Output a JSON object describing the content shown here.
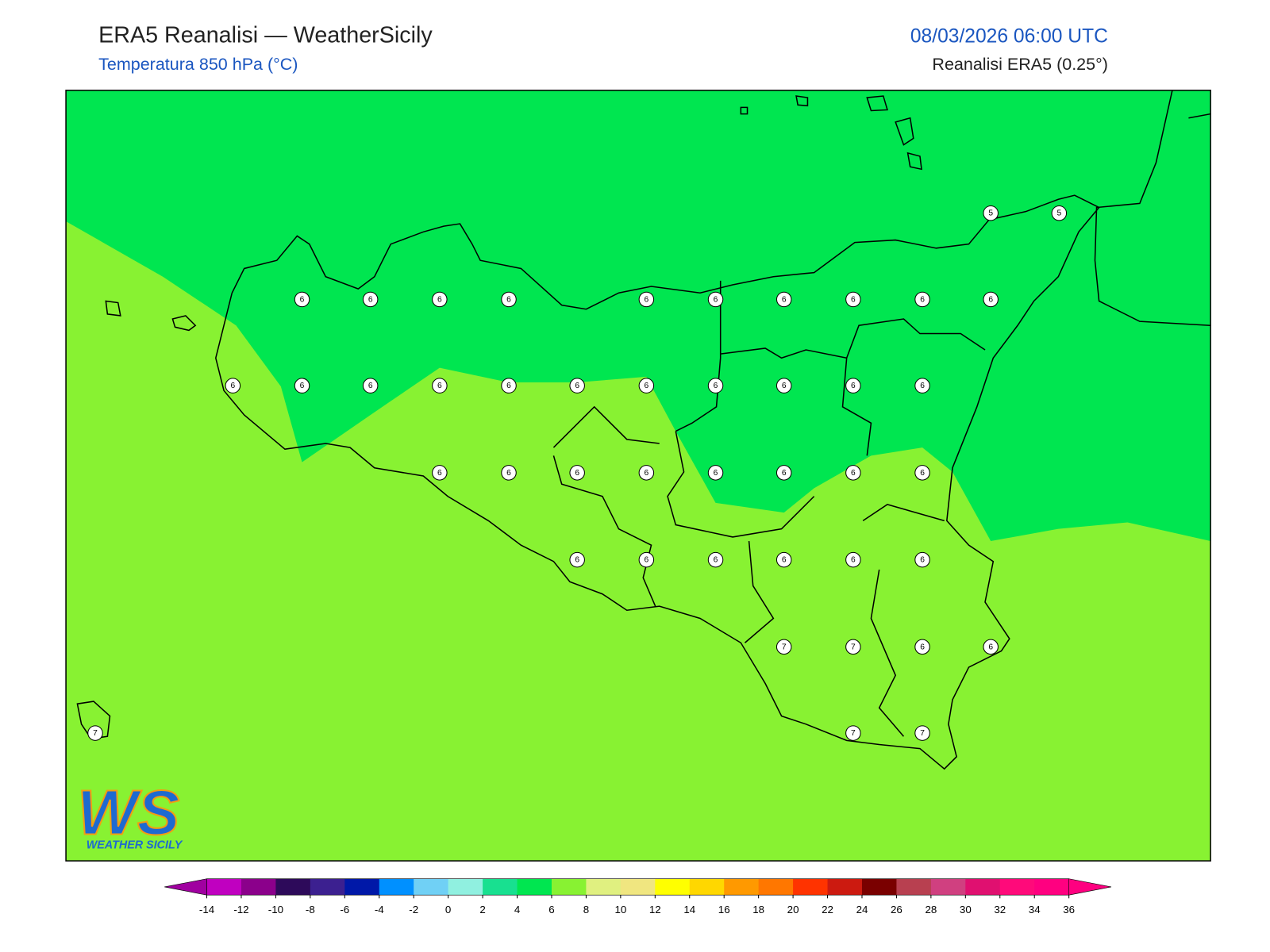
{
  "header": {
    "title": "ERA5 Reanalisi — WeatherSicily",
    "subtitle": "Temperatura 850 hPa (°C)",
    "datetime": "08/03/2026 06:00 UTC",
    "source": "Reanalisi ERA5 (0.25°)"
  },
  "stations": [
    5,
    5,
    6,
    6,
    6,
    6,
    6,
    6,
    6,
    6,
    6,
    6,
    6,
    6,
    6,
    6,
    6,
    6,
    6,
    6,
    6,
    6,
    6,
    6,
    6,
    6,
    6,
    6,
    6,
    6,
    6,
    6,
    6,
    6,
    6,
    6,
    6,
    7,
    7,
    6,
    6,
    7,
    7,
    7
  ],
  "colorbar": {
    "ticks": [
      -14,
      -12,
      -10,
      -8,
      -6,
      -4,
      -2,
      0,
      2,
      4,
      6,
      8,
      10,
      12,
      14,
      16,
      18,
      20,
      22,
      24,
      26,
      28,
      30,
      32,
      34,
      36
    ],
    "colors": [
      "#c000c0",
      "#8b008b",
      "#2d0a5a",
      "#3c2090",
      "#0018a8",
      "#0090ff",
      "#70d0f5",
      "#90f0e0",
      "#18e090",
      "#00e650",
      "#88f232",
      "#e0f080",
      "#f0e680",
      "#ffff00",
      "#ffd700",
      "#ff9900",
      "#ff7700",
      "#ff3300",
      "#cc1a10",
      "#7a0000",
      "#b84050",
      "#d04080",
      "#e01070",
      "#ff0a7a",
      "#ff0080"
    ],
    "under_color": "#a000a0",
    "over_color": "#ff0080"
  },
  "logo": {
    "initials": "WS",
    "text": "WEATHER SICILY"
  }
}
